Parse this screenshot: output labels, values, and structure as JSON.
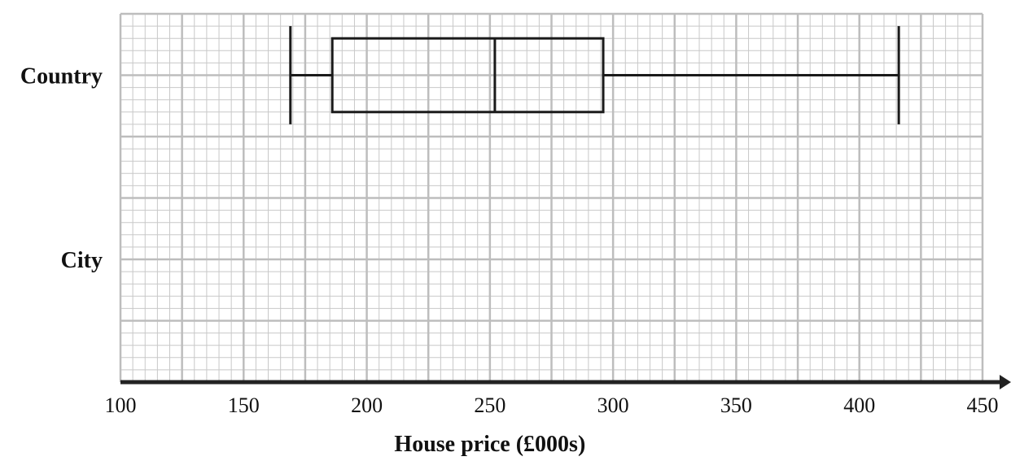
{
  "chart_data": {
    "type": "boxplot",
    "xlabel": "House price (£000s)",
    "xlim": [
      100,
      450
    ],
    "xticks": [
      "100",
      "150",
      "200",
      "250",
      "300",
      "350",
      "400",
      "450"
    ],
    "categories": [
      "Country",
      "City"
    ],
    "boxes": [
      {
        "category": "Country",
        "min": 169,
        "q1": 186,
        "median": 252,
        "q3": 296,
        "max": 416
      },
      {
        "category": "City",
        "min": null,
        "q1": null,
        "median": null,
        "q3": null,
        "max": null
      }
    ],
    "grid": true,
    "colors": {
      "grid_major": "#bdbdbd",
      "grid_minor": "#c8c8c8",
      "axis": "#222222",
      "box": "#1a1a1a"
    }
  }
}
